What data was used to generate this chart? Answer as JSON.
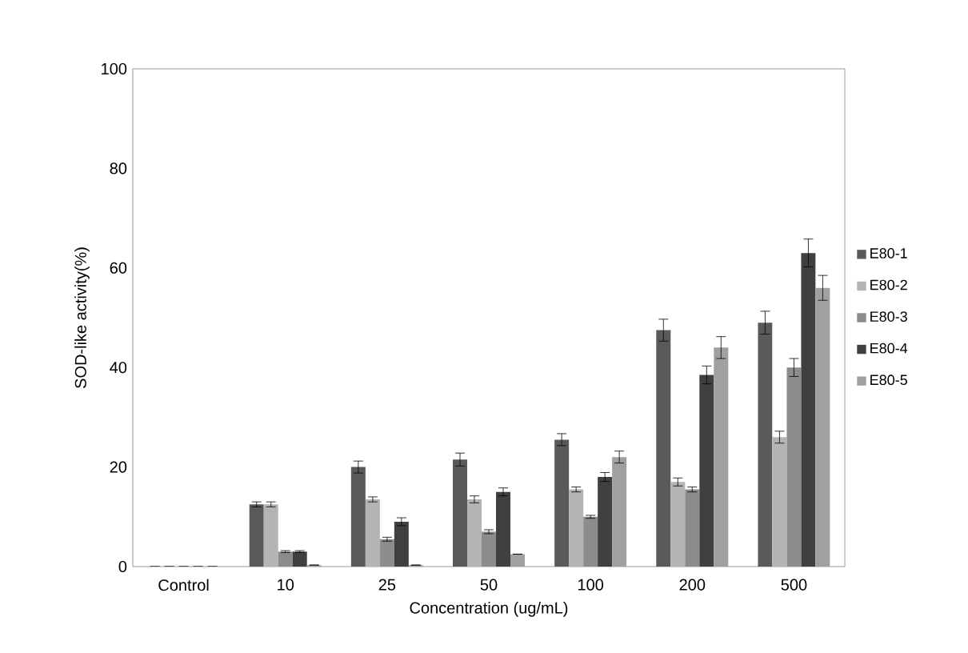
{
  "chart_data": {
    "type": "bar",
    "xlabel": "Concentration (ug/mL)",
    "ylabel": "SOD-like activity(%)",
    "categories": [
      "Control",
      "10",
      "25",
      "50",
      "100",
      "200",
      "500"
    ],
    "ylim": [
      0,
      100
    ],
    "yticks": [
      0,
      20,
      40,
      60,
      80,
      100
    ],
    "legend": "right",
    "series": [
      {
        "name": "E80-1",
        "color": "#5a5a5a",
        "values": [
          0,
          12.5,
          20,
          21.5,
          25.5,
          47.5,
          49
        ],
        "errors": [
          null,
          0.5,
          1.2,
          1.3,
          1.2,
          2.2,
          2.3
        ]
      },
      {
        "name": "E80-2",
        "color": "#b4b4b4",
        "values": [
          0,
          12.5,
          13.5,
          13.5,
          15.5,
          17,
          26
        ],
        "errors": [
          null,
          0.5,
          0.5,
          0.7,
          0.5,
          0.8,
          1.2
        ]
      },
      {
        "name": "E80-3",
        "color": "#8c8c8c",
        "values": [
          0,
          3,
          5.5,
          7,
          10,
          15.5,
          40
        ],
        "errors": [
          null,
          0.2,
          0.4,
          0.4,
          0.3,
          0.5,
          1.8
        ]
      },
      {
        "name": "E80-4",
        "color": "#404040",
        "values": [
          0,
          3,
          9,
          15,
          18,
          38.5,
          63
        ],
        "errors": [
          null,
          0.2,
          0.8,
          0.8,
          0.9,
          1.8,
          2.8
        ]
      },
      {
        "name": "E80-5",
        "color": "#a0a0a0",
        "values": [
          0,
          0.3,
          0.3,
          2.5,
          22,
          44,
          56
        ],
        "errors": [
          null,
          null,
          null,
          null,
          1.2,
          2.2,
          2.5
        ]
      }
    ]
  }
}
